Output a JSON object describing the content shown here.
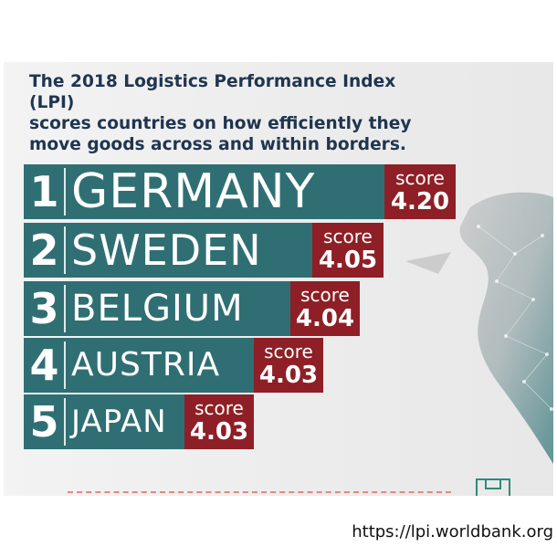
{
  "intro": "The 2018 Logistics Performance Index (LPI)\nscores countries on how efficiently they\nmove goods across and within borders.",
  "rankings": [
    {
      "rank": "1",
      "country": "GERMANY",
      "score_label": "score",
      "score": "4.20"
    },
    {
      "rank": "2",
      "country": "SWEDEN",
      "score_label": "score",
      "score": "4.05"
    },
    {
      "rank": "3",
      "country": "BELGIUM",
      "score_label": "score",
      "score": "4.04"
    },
    {
      "rank": "4",
      "country": "AUSTRIA",
      "score_label": "score",
      "score": "4.03"
    },
    {
      "rank": "5",
      "country": "JAPAN",
      "score_label": "score",
      "score": "4.03"
    }
  ],
  "source_url": "https://lpi.worldbank.org",
  "colors": {
    "teal": "#2f6f73",
    "score_red": "#8e1f26",
    "title_navy": "#1f3550",
    "map_teal": "#3f7f83"
  },
  "icons": [
    "world-map-illustration",
    "forklift-icon",
    "package-box-icon"
  ]
}
